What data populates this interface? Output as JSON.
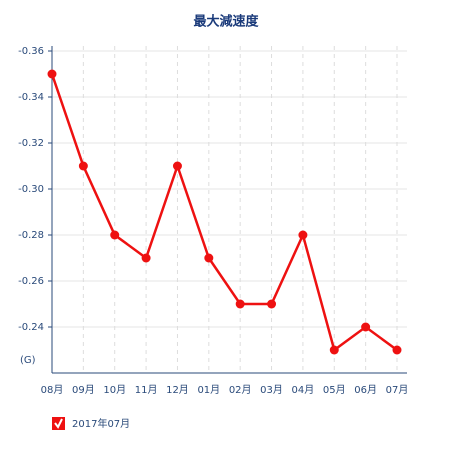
{
  "chart_data": {
    "type": "line",
    "title": "最大減速度",
    "y_unit_label": "(G)",
    "categories": [
      "08月",
      "09月",
      "10月",
      "11月",
      "12月",
      "01月",
      "02月",
      "03月",
      "04月",
      "05月",
      "06月",
      "07月"
    ],
    "series": [
      {
        "name": "2017年07月",
        "color": "#ee1111",
        "values": [
          -0.35,
          -0.31,
          -0.28,
          -0.27,
          -0.31,
          -0.27,
          -0.25,
          -0.25,
          -0.28,
          -0.23,
          -0.24,
          -0.23
        ]
      }
    ],
    "ylim": [
      -0.22,
      -0.36
    ],
    "yticks": [
      -0.36,
      -0.34,
      -0.32,
      {
        "value": -0.3,
        "label": "-0.30"
      },
      -0.28,
      -0.26,
      -0.24
    ],
    "grid": true
  }
}
